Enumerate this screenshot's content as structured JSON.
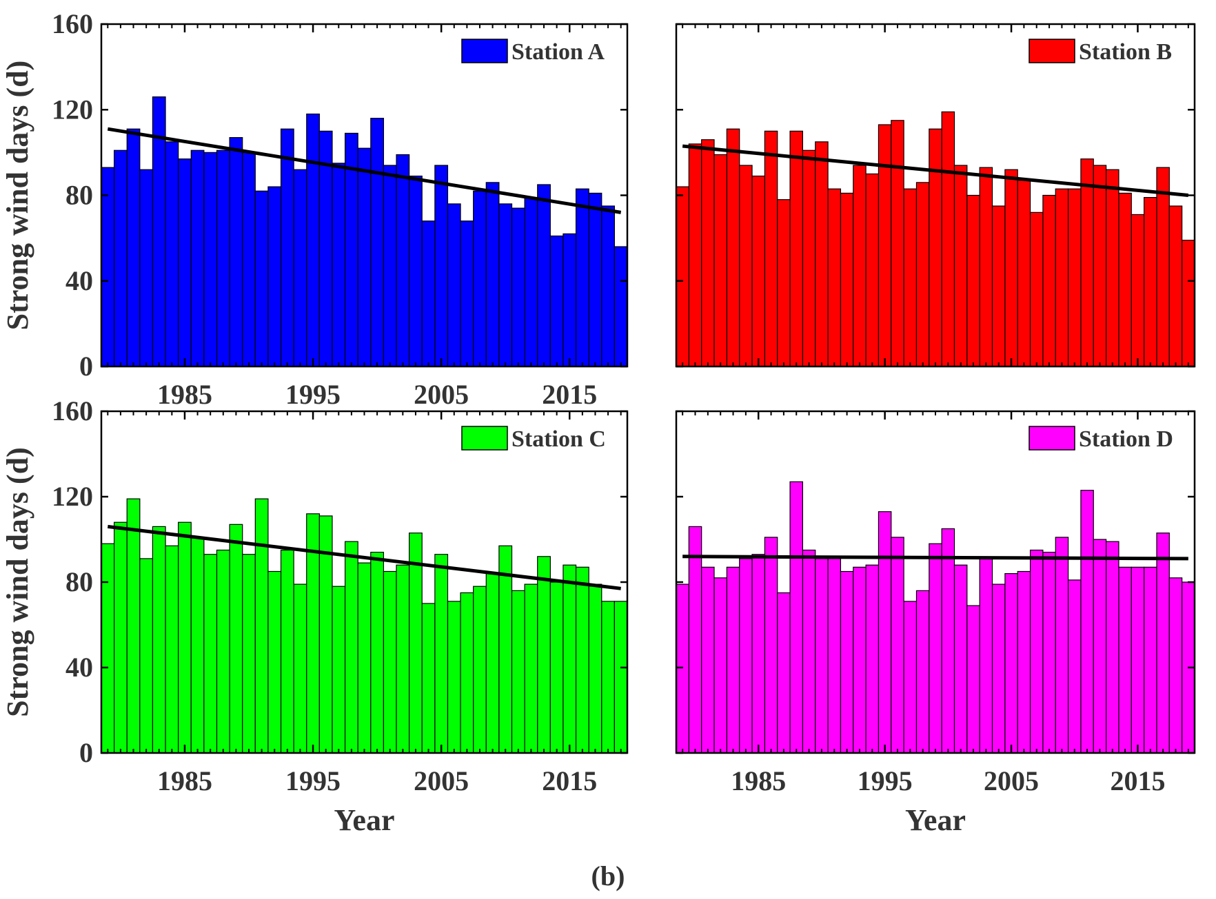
{
  "figure_label": "(b)",
  "chart_data": [
    {
      "type": "bar",
      "series_name": "Station A",
      "color": "#0000ff",
      "x": [
        1979,
        1980,
        1981,
        1982,
        1983,
        1984,
        1985,
        1986,
        1987,
        1988,
        1989,
        1990,
        1991,
        1992,
        1993,
        1994,
        1995,
        1996,
        1997,
        1998,
        1999,
        2000,
        2001,
        2002,
        2003,
        2004,
        2005,
        2006,
        2007,
        2008,
        2009,
        2010,
        2011,
        2012,
        2013,
        2014,
        2015,
        2016,
        2017,
        2018,
        2019
      ],
      "values": [
        93,
        101,
        111,
        92,
        126,
        105,
        97,
        101,
        100,
        101,
        107,
        100,
        82,
        84,
        111,
        92,
        118,
        110,
        95,
        109,
        102,
        116,
        94,
        99,
        89,
        68,
        94,
        76,
        68,
        82,
        86,
        76,
        74,
        79,
        85,
        61,
        62,
        83,
        81,
        75,
        56
      ],
      "trend": {
        "start": [
          1979,
          111
        ],
        "end": [
          2019,
          72
        ]
      },
      "xticks": [
        "1985",
        "1995",
        "2005",
        "2015"
      ],
      "yticks": [
        "0",
        "40",
        "80",
        "120",
        "160"
      ],
      "ylim": [
        0,
        160
      ],
      "xlim": [
        1978.5,
        2019.5
      ],
      "ylabel": "Strong wind days (d)",
      "xlabel": "",
      "legend_position": "top-right"
    },
    {
      "type": "bar",
      "series_name": "Station B",
      "color": "#ff0000",
      "x": [
        1979,
        1980,
        1981,
        1982,
        1983,
        1984,
        1985,
        1986,
        1987,
        1988,
        1989,
        1990,
        1991,
        1992,
        1993,
        1994,
        1995,
        1996,
        1997,
        1998,
        1999,
        2000,
        2001,
        2002,
        2003,
        2004,
        2005,
        2006,
        2007,
        2008,
        2009,
        2010,
        2011,
        2012,
        2013,
        2014,
        2015,
        2016,
        2017,
        2018,
        2019
      ],
      "values": [
        84,
        104,
        106,
        99,
        111,
        94,
        89,
        110,
        78,
        110,
        101,
        105,
        83,
        81,
        94,
        90,
        113,
        115,
        83,
        86,
        111,
        119,
        94,
        80,
        93,
        75,
        92,
        87,
        72,
        80,
        83,
        83,
        97,
        94,
        92,
        81,
        71,
        79,
        93,
        75,
        59
      ],
      "trend": {
        "start": [
          1979,
          103
        ],
        "end": [
          2019,
          80
        ]
      },
      "xticks": [],
      "yticks": [],
      "ylim": [
        0,
        160
      ],
      "xlim": [
        1978.5,
        2019.5
      ],
      "ylabel": "",
      "xlabel": "",
      "legend_position": "top-right"
    },
    {
      "type": "bar",
      "series_name": "Station C",
      "color": "#00ff00",
      "x": [
        1979,
        1980,
        1981,
        1982,
        1983,
        1984,
        1985,
        1986,
        1987,
        1988,
        1989,
        1990,
        1991,
        1992,
        1993,
        1994,
        1995,
        1996,
        1997,
        1998,
        1999,
        2000,
        2001,
        2002,
        2003,
        2004,
        2005,
        2006,
        2007,
        2008,
        2009,
        2010,
        2011,
        2012,
        2013,
        2014,
        2015,
        2016,
        2017,
        2018,
        2019
      ],
      "values": [
        98,
        108,
        119,
        91,
        106,
        97,
        108,
        101,
        93,
        95,
        107,
        93,
        119,
        85,
        95,
        79,
        112,
        111,
        78,
        99,
        89,
        94,
        85,
        88,
        103,
        70,
        93,
        71,
        75,
        78,
        84,
        97,
        76,
        79,
        92,
        80,
        88,
        87,
        79,
        71,
        71
      ],
      "trend": {
        "start": [
          1979,
          106
        ],
        "end": [
          2019,
          77
        ]
      },
      "xticks": [
        "1985",
        "1995",
        "2005",
        "2015"
      ],
      "yticks": [
        "0",
        "40",
        "80",
        "120",
        "160"
      ],
      "ylim": [
        0,
        160
      ],
      "xlim": [
        1978.5,
        2019.5
      ],
      "ylabel": "Strong wind days (d)",
      "xlabel": "Year",
      "legend_position": "top-right"
    },
    {
      "type": "bar",
      "series_name": "Station D",
      "color": "#ff00ff",
      "x": [
        1979,
        1980,
        1981,
        1982,
        1983,
        1984,
        1985,
        1986,
        1987,
        1988,
        1989,
        1990,
        1991,
        1992,
        1993,
        1994,
        1995,
        1996,
        1997,
        1998,
        1999,
        2000,
        2001,
        2002,
        2003,
        2004,
        2005,
        2006,
        2007,
        2008,
        2009,
        2010,
        2011,
        2012,
        2013,
        2014,
        2015,
        2016,
        2017,
        2018,
        2019
      ],
      "values": [
        79,
        106,
        87,
        82,
        87,
        91,
        93,
        101,
        75,
        127,
        95,
        91,
        91,
        85,
        87,
        88,
        113,
        101,
        71,
        76,
        98,
        105,
        88,
        69,
        91,
        79,
        84,
        85,
        95,
        94,
        101,
        81,
        123,
        100,
        99,
        87,
        87,
        87,
        103,
        82,
        80
      ],
      "trend": {
        "start": [
          1979,
          92
        ],
        "end": [
          2019,
          91
        ]
      },
      "xticks": [
        "1985",
        "1995",
        "2005",
        "2015"
      ],
      "yticks": [],
      "ylim": [
        0,
        160
      ],
      "xlim": [
        1978.5,
        2019.5
      ],
      "ylabel": "",
      "xlabel": "Year",
      "legend_position": "top-right"
    }
  ]
}
